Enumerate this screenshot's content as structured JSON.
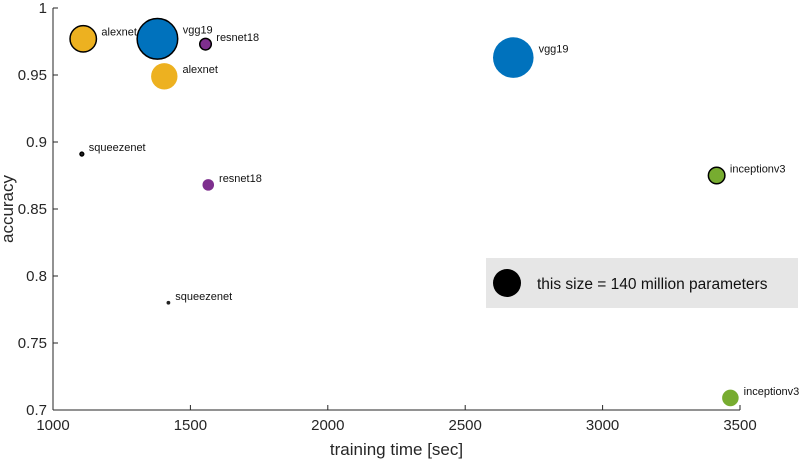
{
  "chart_data": {
    "type": "scatter",
    "xlabel": "training time [sec]",
    "ylabel": "accuracy",
    "xlim": [
      1000,
      3500
    ],
    "ylim": [
      0.7,
      1.0
    ],
    "xticks": [
      1000,
      1500,
      2000,
      2500,
      3000,
      3500
    ],
    "xtick_labels": [
      "1000",
      "1500",
      "2000",
      "2500",
      "3000",
      "3500"
    ],
    "yticks": [
      0.7,
      0.75,
      0.8,
      0.85,
      0.9,
      0.95,
      1.0
    ],
    "ytick_labels": [
      "0.7",
      "0.75",
      "0.8",
      "0.85",
      "0.9",
      "0.95",
      "1"
    ],
    "grid": false,
    "size_unit": "million parameters",
    "colors": {
      "alexnet": "#EDB120",
      "vgg19": "#0072BD",
      "resnet18": "#7E2F8E",
      "squeezenet": "#222222",
      "inceptionv3": "#77AC30"
    },
    "points": [
      {
        "name": "alexnet",
        "x": 1110,
        "y": 0.977,
        "size": 61,
        "outlined": true
      },
      {
        "name": "alexnet",
        "x": 1405,
        "y": 0.949,
        "size": 61,
        "outlined": false
      },
      {
        "name": "vgg19",
        "x": 1380,
        "y": 0.977,
        "size": 144,
        "outlined": true
      },
      {
        "name": "vgg19",
        "x": 2675,
        "y": 0.963,
        "size": 144,
        "outlined": false
      },
      {
        "name": "resnet18",
        "x": 1555,
        "y": 0.973,
        "size": 11.7,
        "outlined": true
      },
      {
        "name": "resnet18",
        "x": 1565,
        "y": 0.868,
        "size": 11.7,
        "outlined": false
      },
      {
        "name": "squeezenet",
        "x": 1105,
        "y": 0.891,
        "size": 1.24,
        "outlined": true
      },
      {
        "name": "squeezenet",
        "x": 1420,
        "y": 0.78,
        "size": 1.24,
        "outlined": false
      },
      {
        "name": "inceptionv3",
        "x": 3415,
        "y": 0.875,
        "size": 23.9,
        "outlined": true
      },
      {
        "name": "inceptionv3",
        "x": 3465,
        "y": 0.709,
        "size": 23.9,
        "outlined": false
      }
    ],
    "legend": {
      "text": "this size = 140 million parameters",
      "reference_size": 140,
      "placement": "lower-right"
    }
  }
}
